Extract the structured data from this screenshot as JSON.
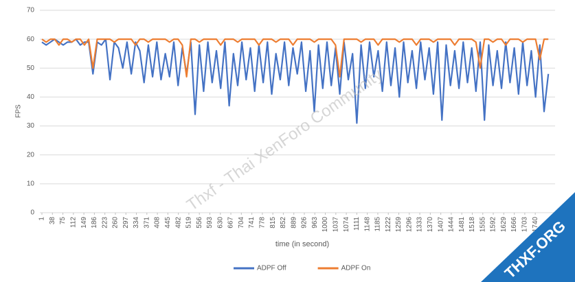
{
  "chart_data": {
    "type": "line",
    "y_label": "FPS",
    "x_label": "time (in second)",
    "watermark": "Thxf - Thai XenForo Community",
    "logo": "THXF.ORG",
    "x": [
      1,
      16,
      31,
      46,
      61,
      76,
      91,
      106,
      121,
      136,
      151,
      166,
      181,
      196,
      211,
      226,
      241,
      256,
      271,
      286,
      301,
      316,
      331,
      346,
      361,
      376,
      391,
      406,
      421,
      436,
      451,
      466,
      481,
      496,
      511,
      526,
      541,
      556,
      571,
      586,
      601,
      616,
      631,
      646,
      661,
      676,
      691,
      706,
      721,
      736,
      751,
      766,
      781,
      796,
      811,
      826,
      841,
      856,
      871,
      886,
      901,
      916,
      931,
      946,
      961,
      976,
      991,
      1006,
      1021,
      1036,
      1051,
      1066,
      1081,
      1096,
      1111,
      1126,
      1141,
      1156,
      1171,
      1186,
      1201,
      1216,
      1231,
      1246,
      1261,
      1276,
      1291,
      1306,
      1321,
      1336,
      1351,
      1366,
      1381,
      1396,
      1411,
      1426,
      1441,
      1456,
      1471,
      1486,
      1501,
      1516,
      1531,
      1546,
      1561,
      1576,
      1591,
      1606,
      1621,
      1636,
      1651,
      1666,
      1681,
      1696,
      1711,
      1726,
      1741,
      1756,
      1771,
      1786
    ],
    "series": [
      {
        "name": "ADPF Off",
        "color": "#4472c4",
        "values": [
          59,
          58,
          59,
          60,
          59,
          58,
          59,
          59,
          60,
          58,
          59,
          59,
          48,
          59,
          58,
          60,
          46,
          59,
          57,
          50,
          59,
          48,
          59,
          56,
          45,
          58,
          47,
          59,
          46,
          55,
          47,
          59,
          44,
          57,
          48,
          59,
          34,
          58,
          42,
          59,
          45,
          56,
          43,
          59,
          37,
          55,
          44,
          59,
          46,
          57,
          42,
          58,
          45,
          59,
          41,
          55,
          46,
          59,
          44,
          57,
          48,
          59,
          42,
          56,
          35,
          58,
          43,
          59,
          44,
          57,
          41,
          59,
          46,
          55,
          31,
          58,
          43,
          59,
          47,
          56,
          42,
          59,
          44,
          57,
          40,
          59,
          45,
          56,
          43,
          59,
          46,
          57,
          41,
          59,
          32,
          58,
          44,
          56,
          43,
          59,
          45,
          57,
          42,
          59,
          32,
          58,
          44,
          56,
          43,
          59,
          45,
          57,
          41,
          59,
          44,
          56,
          40,
          58,
          35,
          48
        ]
      },
      {
        "name": "ADPF On",
        "color": "#ed7d31",
        "values": [
          60,
          59,
          60,
          60,
          58,
          60,
          60,
          59,
          60,
          60,
          58,
          60,
          50,
          60,
          60,
          60,
          60,
          59,
          60,
          60,
          60,
          60,
          58,
          60,
          60,
          59,
          60,
          60,
          60,
          60,
          59,
          60,
          60,
          58,
          47,
          60,
          60,
          59,
          60,
          60,
          60,
          60,
          58,
          60,
          60,
          60,
          59,
          60,
          60,
          60,
          60,
          58,
          60,
          60,
          60,
          59,
          60,
          60,
          60,
          58,
          60,
          60,
          60,
          60,
          59,
          60,
          60,
          60,
          60,
          58,
          47,
          60,
          60,
          60,
          60,
          59,
          60,
          60,
          60,
          58,
          60,
          60,
          60,
          60,
          59,
          60,
          60,
          60,
          58,
          60,
          60,
          60,
          59,
          60,
          60,
          60,
          60,
          58,
          60,
          60,
          60,
          60,
          59,
          50,
          60,
          60,
          59,
          60,
          60,
          58,
          60,
          60,
          60,
          59,
          60,
          60,
          60,
          53,
          60,
          60
        ]
      }
    ],
    "xlim": [
      1,
      1805
    ],
    "xticks": [
      1,
      38,
      75,
      112,
      149,
      186,
      223,
      260,
      297,
      334,
      371,
      408,
      445,
      482,
      519,
      556,
      593,
      630,
      667,
      704,
      741,
      778,
      815,
      852,
      889,
      926,
      963,
      1000,
      1037,
      1074,
      1111,
      1148,
      1185,
      1222,
      1259,
      1296,
      1333,
      1370,
      1407,
      1444,
      1481,
      1518,
      1555,
      1592,
      1629,
      1666,
      1703,
      1740
    ],
    "ylim": [
      0,
      70
    ],
    "yticks": [
      0,
      10,
      20,
      30,
      40,
      50,
      60,
      70
    ],
    "grid": true,
    "legend": "bottom"
  }
}
